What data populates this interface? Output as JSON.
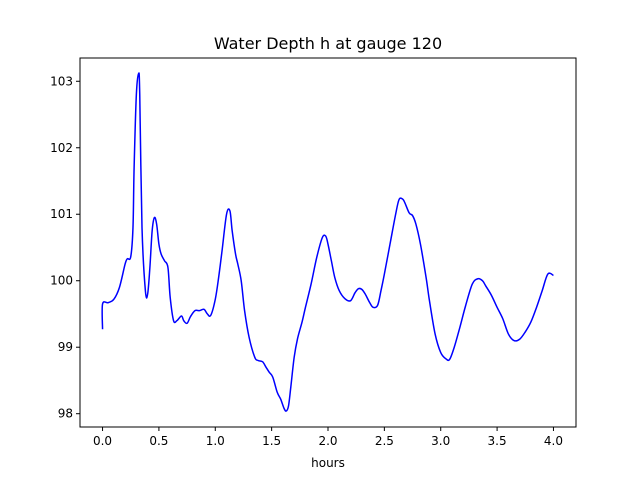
{
  "chart_data": {
    "type": "line",
    "title": "Water Depth h at gauge 120",
    "xlabel": "hours",
    "ylabel": "",
    "xlim": [
      -0.2,
      4.2
    ],
    "ylim": [
      97.8,
      103.35
    ],
    "xticks": [
      0.0,
      0.5,
      1.0,
      1.5,
      2.0,
      2.5,
      3.0,
      3.5,
      4.0
    ],
    "xtick_labels": [
      "0.0",
      "0.5",
      "1.0",
      "1.5",
      "2.0",
      "2.5",
      "3.0",
      "3.5",
      "4.0"
    ],
    "yticks": [
      98,
      99,
      100,
      101,
      102,
      103
    ],
    "ytick_labels": [
      "98",
      "99",
      "100",
      "101",
      "102",
      "103"
    ],
    "grid": false,
    "line_color": "#0000ff",
    "series": [
      {
        "x": [
          0.0,
          0.0,
          0.05,
          0.1,
          0.15,
          0.2,
          0.22,
          0.25,
          0.27,
          0.28,
          0.3,
          0.32,
          0.33,
          0.35,
          0.38,
          0.4,
          0.42,
          0.44,
          0.46,
          0.48,
          0.5,
          0.52,
          0.55,
          0.58,
          0.6,
          0.63,
          0.66,
          0.7,
          0.72,
          0.75,
          0.78,
          0.82,
          0.86,
          0.9,
          0.93,
          0.96,
          1.0,
          1.03,
          1.06,
          1.1,
          1.13,
          1.15,
          1.18,
          1.2,
          1.23,
          1.26,
          1.3,
          1.35,
          1.38,
          1.42,
          1.45,
          1.48,
          1.51,
          1.55,
          1.58,
          1.61,
          1.63,
          1.65,
          1.67,
          1.7,
          1.73,
          1.77,
          1.8,
          1.85,
          1.9,
          1.95,
          1.98,
          2.0,
          2.03,
          2.06,
          2.1,
          2.15,
          2.2,
          2.24,
          2.27,
          2.3,
          2.33,
          2.37,
          2.4,
          2.44,
          2.47,
          2.5,
          2.55,
          2.6,
          2.63,
          2.66,
          2.68,
          2.72,
          2.75,
          2.78,
          2.82,
          2.87,
          2.9,
          2.95,
          3.0,
          3.05,
          3.08,
          3.12,
          3.17,
          3.22,
          3.28,
          3.33,
          3.37,
          3.4,
          3.45,
          3.5,
          3.55,
          3.6,
          3.65,
          3.7,
          3.75,
          3.8,
          3.85,
          3.9,
          3.95,
          4.0
        ],
        "values": [
          99.27,
          99.65,
          99.67,
          99.72,
          99.9,
          100.25,
          100.33,
          100.36,
          100.8,
          101.7,
          102.8,
          103.12,
          102.8,
          100.8,
          99.85,
          99.8,
          100.2,
          100.75,
          100.95,
          100.85,
          100.55,
          100.4,
          100.3,
          100.2,
          99.75,
          99.4,
          99.4,
          99.47,
          99.4,
          99.36,
          99.46,
          99.55,
          99.55,
          99.57,
          99.5,
          99.48,
          99.72,
          100.05,
          100.45,
          101.0,
          101.05,
          100.75,
          100.4,
          100.25,
          100.0,
          99.55,
          99.15,
          98.85,
          98.8,
          98.78,
          98.7,
          98.62,
          98.55,
          98.32,
          98.22,
          98.08,
          98.04,
          98.12,
          98.4,
          98.85,
          99.13,
          99.38,
          99.6,
          99.95,
          100.35,
          100.65,
          100.67,
          100.55,
          100.3,
          100.05,
          99.85,
          99.73,
          99.7,
          99.82,
          99.88,
          99.87,
          99.8,
          99.67,
          99.6,
          99.63,
          99.85,
          100.1,
          100.55,
          101.0,
          101.22,
          101.23,
          101.18,
          101.02,
          100.98,
          100.85,
          100.55,
          100.05,
          99.7,
          99.2,
          98.92,
          98.82,
          98.82,
          99.0,
          99.3,
          99.62,
          99.95,
          100.03,
          100.0,
          99.92,
          99.78,
          99.6,
          99.43,
          99.2,
          99.1,
          99.12,
          99.23,
          99.38,
          99.6,
          99.85,
          100.1,
          100.08
        ]
      }
    ]
  }
}
